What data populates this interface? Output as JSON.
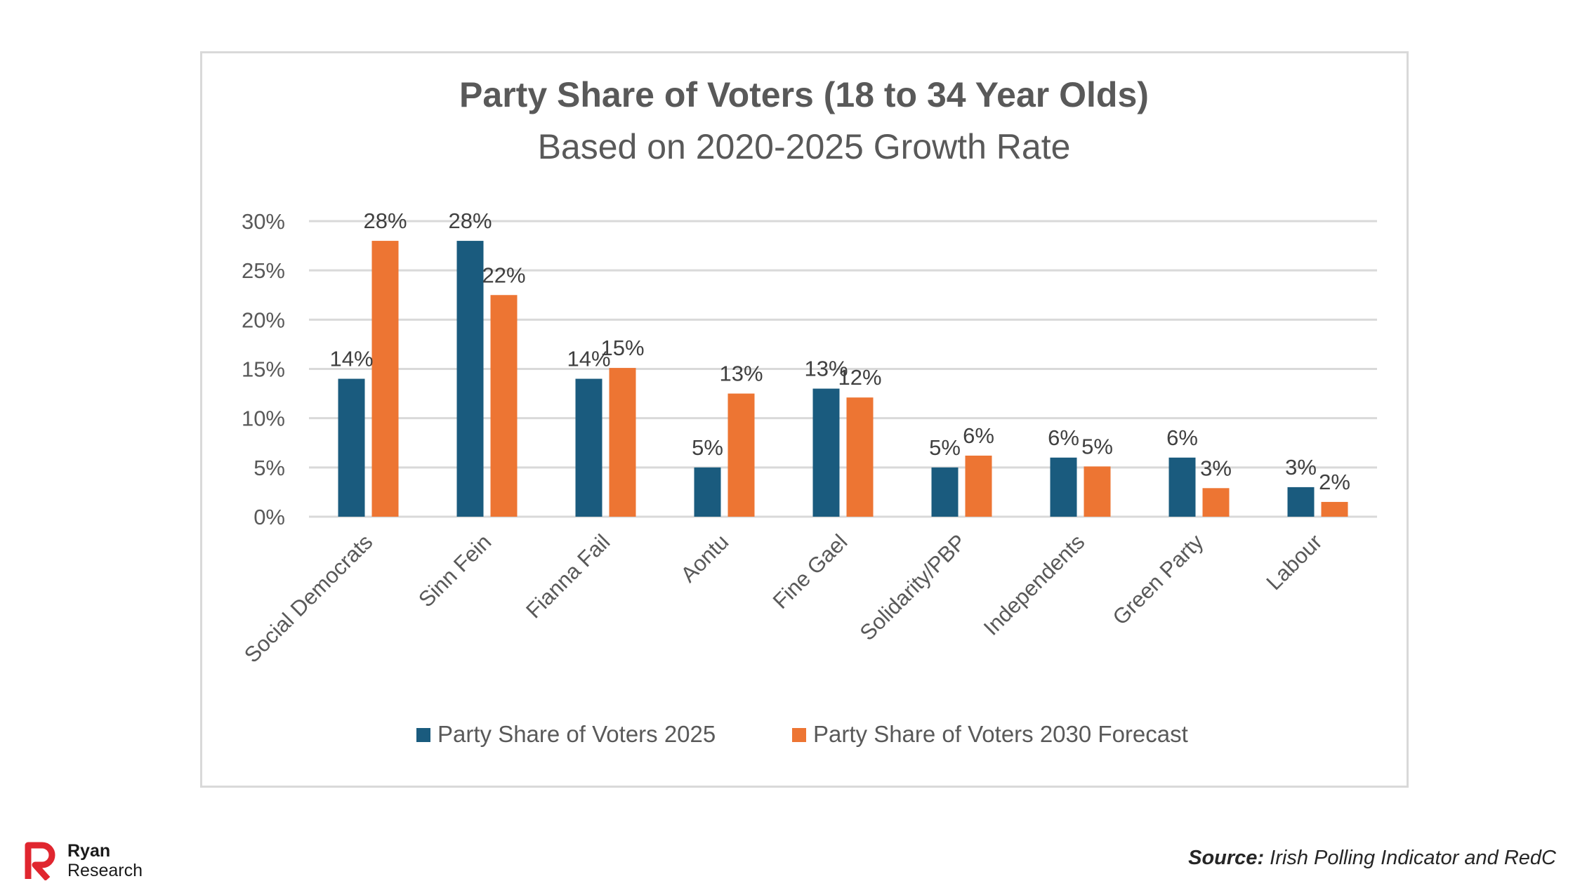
{
  "chart_data": {
    "type": "bar",
    "title": "Party Share of Voters (18 to 34 Year Olds)",
    "subtitle": "Based on 2020-2025 Growth Rate",
    "categories": [
      "Social Democrats",
      "Sinn Fein",
      "Fianna Fail",
      "Aontu",
      "Fine Gael",
      "Solidarity/PBP",
      "Independents",
      "Green Party",
      "Labour"
    ],
    "series": [
      {
        "name": "Party Share of Voters 2025",
        "color": "#1a5b7e",
        "values": [
          14,
          28,
          14,
          5,
          13,
          5,
          6,
          6,
          3
        ],
        "labels": [
          "14%",
          "28%",
          "14%",
          "5%",
          "13%",
          "5%",
          "6%",
          "6%",
          "3%"
        ]
      },
      {
        "name": "Party Share of Voters 2030 Forecast",
        "color": "#ed7533",
        "values": [
          28,
          22.5,
          15.1,
          12.5,
          12.1,
          6.2,
          5.1,
          2.9,
          1.5
        ],
        "labels": [
          "28%",
          "22%",
          "15%",
          "13%",
          "12%",
          "6%",
          "5%",
          "3%",
          "2%"
        ]
      }
    ],
    "y_ticks": [
      "0%",
      "5%",
      "10%",
      "15%",
      "20%",
      "25%",
      "30%"
    ],
    "y_tick_values": [
      0,
      5,
      10,
      15,
      20,
      25,
      30
    ],
    "ylim": [
      0,
      30
    ],
    "grid": true,
    "legend_position": "bottom"
  },
  "footer": {
    "logo_line1": "Ryan",
    "logo_line2": "Research",
    "source_label": "Source:",
    "source_text": " Irish Polling Indicator and RedC"
  },
  "colors": {
    "gridline": "#d9d9d9",
    "logo_red": "#e0262f"
  }
}
